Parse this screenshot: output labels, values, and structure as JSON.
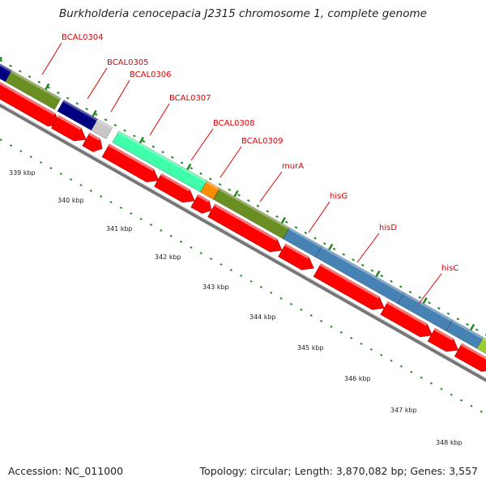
{
  "header": {
    "title": "Burkholderia cenocepacia J2315 chromosome 1, complete genome"
  },
  "footer": {
    "accession": "Accession: NC_011000",
    "summary": "Topology: circular; Length: 3,870,082 bp; Genes: 3,557"
  },
  "colors": {
    "forward_gene": "#ff0000",
    "backbone": "#888888",
    "tick": "#228822",
    "label": "#dd0000"
  },
  "scale": {
    "unit": "kbp",
    "labels": [
      "339 kbp",
      "340 kbp",
      "341 kbp",
      "342 kbp",
      "343 kbp",
      "344 kbp",
      "345 kbp",
      "346 kbp",
      "347 kbp",
      "348 kbp"
    ]
  },
  "genes": [
    {
      "name": "BCAL0304",
      "color": "#6b8e23"
    },
    {
      "name": "BCAL0305",
      "color": "#000080"
    },
    {
      "name": "BCAL0306",
      "color": "#c8c8c8"
    },
    {
      "name": "BCAL0307",
      "color": "#40ffaa"
    },
    {
      "name": "BCAL0308",
      "color": "#ff8c00"
    },
    {
      "name": "BCAL0309",
      "color": "#6b8e23"
    },
    {
      "name": "murA",
      "color": "#4682b4"
    },
    {
      "name": "hisG",
      "color": "#4682b4"
    },
    {
      "name": "hisD",
      "color": "#4682b4"
    },
    {
      "name": "hisC",
      "color": "#4682b4"
    }
  ]
}
